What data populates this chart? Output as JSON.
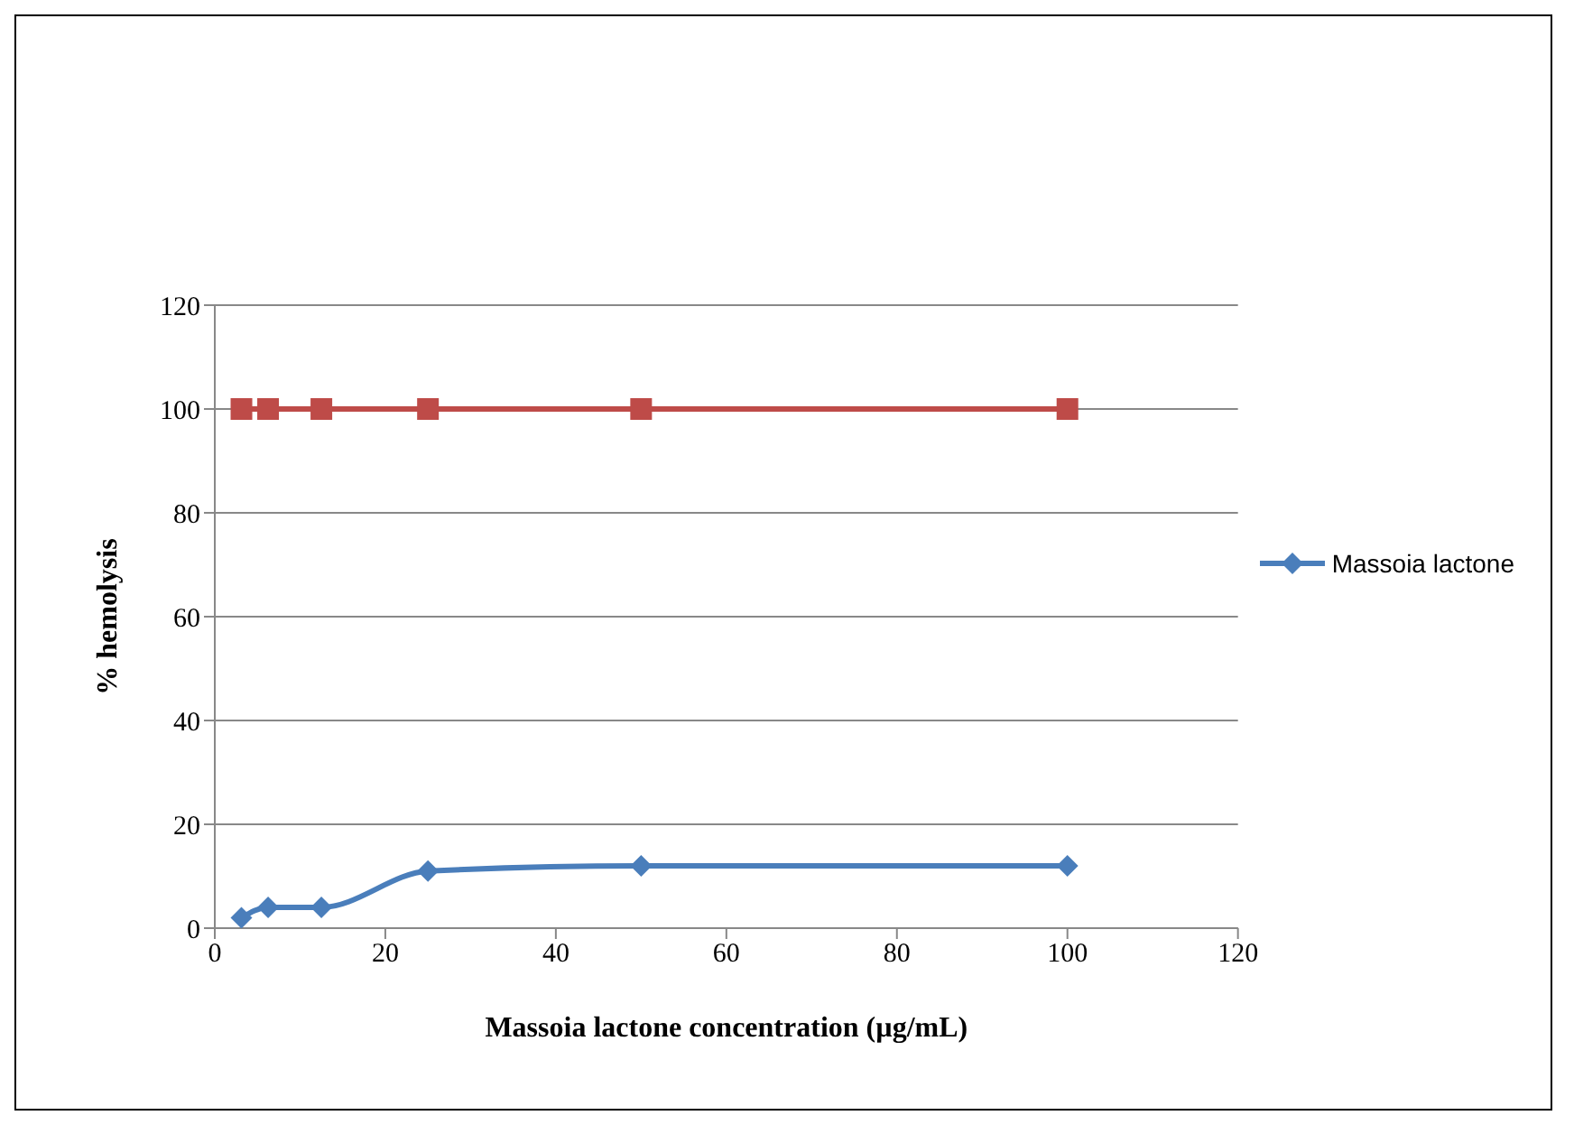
{
  "chart_data": {
    "type": "line",
    "xlabel": "Massoia lactone concentration (µg/mL)",
    "ylabel": "% hemolysis",
    "x": [
      3.125,
      6.25,
      12.5,
      25,
      50,
      100
    ],
    "series": [
      {
        "name": "Massoia lactone",
        "color": "#4a7ebb",
        "marker": "diamond",
        "values": [
          2,
          4,
          4,
          11,
          12,
          12
        ]
      },
      {
        "color": "#be4b48",
        "marker": "square",
        "values": [
          100,
          100,
          100,
          100,
          100,
          100
        ]
      }
    ],
    "xlim": [
      0,
      120
    ],
    "xticks": [
      0,
      20,
      40,
      60,
      80,
      100,
      120
    ],
    "ylim": [
      0,
      120
    ],
    "yticks": [
      0,
      20,
      40,
      60,
      80,
      100,
      120
    ],
    "grid": "y",
    "legend": "right"
  }
}
